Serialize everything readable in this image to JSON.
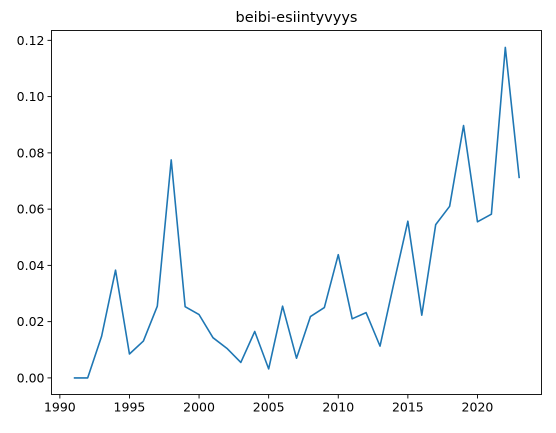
{
  "chart_data": {
    "type": "line",
    "title": "beibi-esiintyvyys",
    "xlabel": "",
    "ylabel": "",
    "xlim": [
      1989.4,
      2024.6
    ],
    "ylim": [
      -0.0059,
      0.1235
    ],
    "x_ticks": [
      1990,
      1995,
      2000,
      2005,
      2010,
      2015,
      2020
    ],
    "y_ticks": [
      0.0,
      0.02,
      0.04,
      0.06,
      0.08,
      0.1,
      0.12
    ],
    "y_tick_labels": [
      "0.00",
      "0.02",
      "0.04",
      "0.06",
      "0.08",
      "0.10",
      "0.12"
    ],
    "grid": false,
    "series": [
      {
        "color": "#1f77b4",
        "x": [
          1991,
          1992,
          1993,
          1994,
          1995,
          1996,
          1997,
          1998,
          1999,
          2000,
          2001,
          2002,
          2003,
          2004,
          2005,
          2006,
          2007,
          2008,
          2009,
          2010,
          2011,
          2012,
          2013,
          2014,
          2015,
          2016,
          2017,
          2018,
          2019,
          2020,
          2021,
          2022,
          2023
        ],
        "y": [
          0.0,
          0.0,
          0.0148,
          0.0383,
          0.0085,
          0.0131,
          0.0255,
          0.0775,
          0.0253,
          0.0225,
          0.0143,
          0.0105,
          0.0055,
          0.0165,
          0.0032,
          0.0255,
          0.007,
          0.0218,
          0.025,
          0.0438,
          0.021,
          0.0232,
          0.0113,
          0.0338,
          0.0557,
          0.0223,
          0.0545,
          0.061,
          0.0897,
          0.0555,
          0.0582,
          0.1175,
          0.071
        ]
      }
    ]
  }
}
